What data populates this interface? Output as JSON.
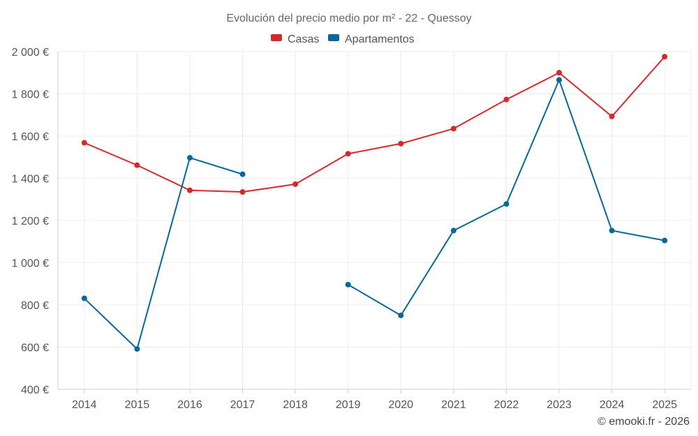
{
  "chart_data": {
    "type": "line",
    "title": "Evolución del precio medio por m² - 22 - Quessoy",
    "categories": [
      "2014",
      "2015",
      "2016",
      "2017",
      "2018",
      "2019",
      "2020",
      "2021",
      "2022",
      "2023",
      "2024",
      "2025"
    ],
    "ylim": [
      400,
      2000
    ],
    "yticks": [
      400,
      600,
      800,
      1000,
      1200,
      1400,
      1600,
      1800,
      2000
    ],
    "ytick_labels": [
      "400 €",
      "600 €",
      "800 €",
      "1 000 €",
      "1 200 €",
      "1 400 €",
      "1 600 €",
      "1 800 €",
      "2 000 €"
    ],
    "grid": true,
    "legend_position": "top-center",
    "series": [
      {
        "name": "Casas",
        "color": "#d42a2a",
        "values": [
          1568,
          1462,
          1343,
          1335,
          1372,
          1516,
          1564,
          1635,
          1773,
          1900,
          1693,
          1976
        ]
      },
      {
        "name": "Apartamentos",
        "color": "#06679b",
        "values": [
          831,
          591,
          1497,
          1419,
          null,
          896,
          750,
          1152,
          1278,
          1866,
          1152,
          1105
        ]
      }
    ]
  },
  "credit": "© emooki.fr - 2026"
}
